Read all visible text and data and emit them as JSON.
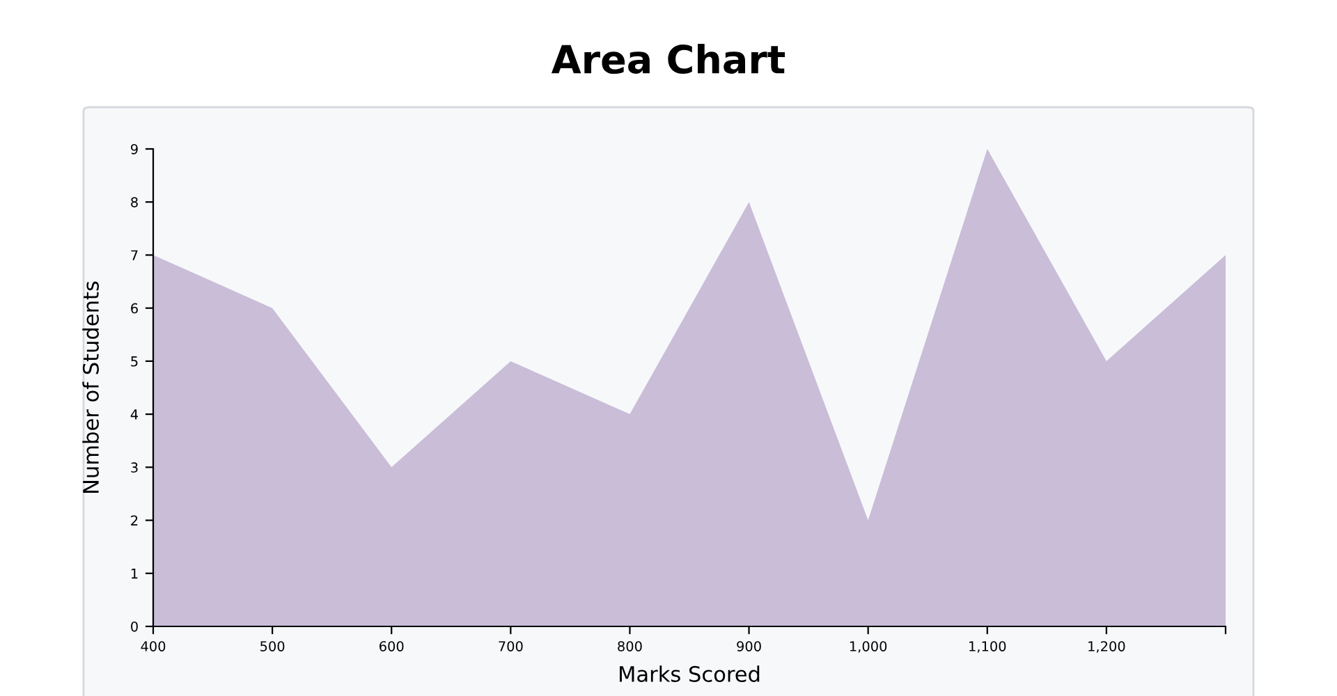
{
  "chart_data": {
    "type": "area",
    "title": "Area Chart",
    "xlabel": "Marks Scored",
    "ylabel": "Number of Students",
    "x": [
      400,
      500,
      600,
      700,
      800,
      900,
      1000,
      1100,
      1200,
      1300
    ],
    "series": [
      {
        "color": "#c9bdd8",
        "values": [
          7,
          6,
          3,
          5,
          4,
          8,
          2,
          9,
          5,
          7
        ]
      }
    ],
    "xlim": [
      400,
      1300
    ],
    "xticks": [
      {
        "value": 400,
        "label": "400"
      },
      {
        "value": 500,
        "label": "500"
      },
      {
        "value": 600,
        "label": "600"
      },
      {
        "value": 700,
        "label": "700"
      },
      {
        "value": 800,
        "label": "800"
      },
      {
        "value": 900,
        "label": "900"
      },
      {
        "value": 1000,
        "label": "1,000"
      },
      {
        "value": 1100,
        "label": "1,100"
      },
      {
        "value": 1200,
        "label": "1,200"
      },
      {
        "value": 1300,
        "label": null
      }
    ],
    "ylim": [
      0,
      9
    ],
    "yticks": [
      0,
      1,
      2,
      3,
      4,
      5,
      6,
      7,
      8,
      9
    ],
    "grid": false
  }
}
